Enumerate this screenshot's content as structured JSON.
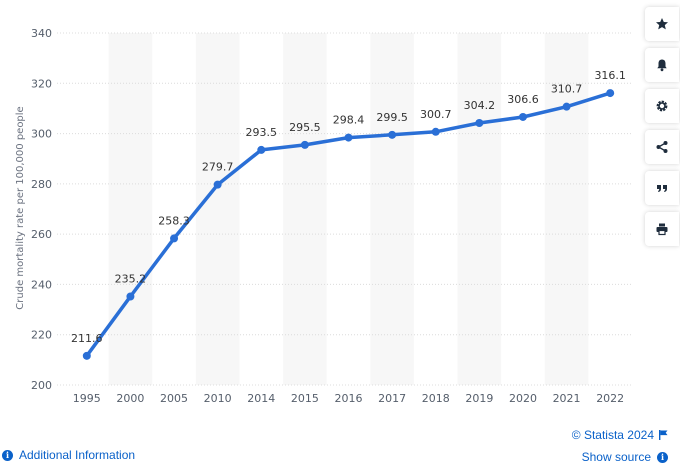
{
  "chart_data": {
    "type": "line",
    "categories": [
      "1995",
      "2000",
      "2005",
      "2010",
      "2014",
      "2015",
      "2016",
      "2017",
      "2018",
      "2019",
      "2020",
      "2021",
      "2022"
    ],
    "values": [
      211.6,
      235.2,
      258.3,
      279.7,
      293.5,
      295.5,
      298.4,
      299.5,
      300.7,
      304.2,
      306.6,
      310.7,
      316.1
    ],
    "data_labels": [
      "211.6",
      "235.2",
      "258.3",
      "279.7",
      "293.5",
      "295.5",
      "298.4",
      "299.5",
      "300.7",
      "304.2",
      "306.6",
      "310.7",
      "316.1"
    ],
    "ylabel": "Crude mortality rate per 100,000 people",
    "xlabel": "",
    "title": "",
    "ylim": [
      200,
      340
    ],
    "yticks": [
      200,
      220,
      240,
      260,
      280,
      300,
      320,
      340
    ],
    "ytick_labels": [
      "200",
      "220",
      "240",
      "260",
      "280",
      "300",
      "320",
      "340"
    ],
    "grid": true,
    "line_color": "#2a6fd6",
    "band_color": "#f7f7f7"
  },
  "toolbar": {
    "icons": [
      "star-icon",
      "bell-icon",
      "gear-icon",
      "share-icon",
      "quote-icon",
      "print-icon"
    ]
  },
  "footer": {
    "additional_info": "Additional Information",
    "copyright": "© Statista 2024",
    "show_source": "Show source"
  }
}
